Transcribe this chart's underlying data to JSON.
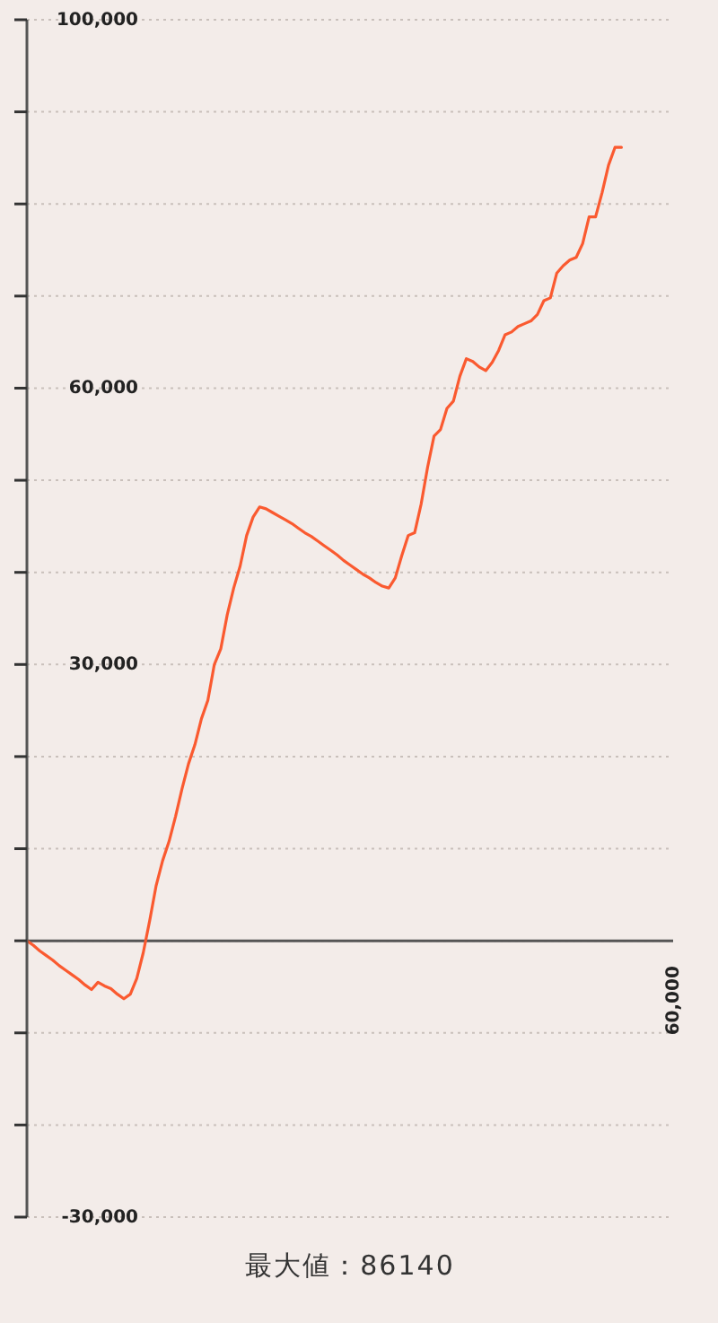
{
  "chart_data": {
    "type": "line",
    "color": "#fa5a30",
    "categories": [
      null,
      null,
      null,
      null,
      null,
      null,
      null,
      null,
      null,
      null,
      null,
      null,
      null,
      null,
      null,
      null,
      null,
      null,
      null,
      null,
      null,
      null,
      null,
      null,
      null,
      null,
      null,
      null,
      null,
      null,
      null,
      null,
      null,
      null,
      null,
      null,
      null,
      null,
      null,
      null,
      null,
      null,
      null,
      null,
      null,
      null,
      null,
      null,
      null,
      null,
      null,
      null,
      null,
      null,
      null,
      null,
      null,
      null,
      null,
      null,
      null,
      null,
      null,
      null,
      null,
      null,
      null,
      null,
      null,
      null,
      null,
      null,
      null,
      null,
      null,
      null,
      null,
      null,
      null,
      null,
      null,
      null,
      null,
      null,
      null,
      null,
      null,
      null,
      null,
      null,
      null,
      null,
      null,
      null,
      null,
      null,
      null,
      null,
      null,
      null,
      "60,000"
    ],
    "values": [
      0,
      -500,
      -1100,
      -1600,
      -2100,
      -2700,
      -3200,
      -3700,
      -4200,
      -4800,
      -5300,
      -4500,
      -4900,
      -5200,
      -5800,
      -6300,
      -5800,
      -4100,
      -1300,
      2200,
      6000,
      8700,
      10800,
      13500,
      16500,
      19200,
      21300,
      24100,
      26100,
      30000,
      31700,
      35400,
      38300,
      40700,
      44000,
      46000,
      47100,
      46900,
      46500,
      46100,
      45700,
      45300,
      44800,
      44300,
      43900,
      43400,
      42900,
      42400,
      41900,
      41300,
      40800,
      40300,
      39800,
      39400,
      38900,
      38500,
      38300,
      39400,
      41800,
      44000,
      44300,
      47400,
      51400,
      54800,
      55500,
      57800,
      58600,
      61300,
      63200,
      62900,
      62300,
      61900,
      62800,
      64100,
      65800,
      66100,
      66700,
      67000,
      67300,
      68000,
      69500,
      69800,
      72500,
      73300,
      73900,
      74200,
      75700,
      78600,
      78600,
      81200,
      84200,
      86140,
      86140,
      null,
      null,
      null,
      null,
      null,
      null,
      null,
      null
    ],
    "ylim": [
      -30000,
      100000
    ],
    "yticks": [
      {
        "value": -30000,
        "label": "-30,000"
      },
      {
        "value": -20000,
        "label": null
      },
      {
        "value": -10000,
        "label": null
      },
      {
        "value": 0,
        "label": null
      },
      {
        "value": 10000,
        "label": null
      },
      {
        "value": 20000,
        "label": null
      },
      {
        "value": 30000,
        "label": "30,000"
      },
      {
        "value": 40000,
        "label": null
      },
      {
        "value": 50000,
        "label": null
      },
      {
        "value": 60000,
        "label": "60,000"
      },
      {
        "value": 70000,
        "label": null
      },
      {
        "value": 80000,
        "label": null
      },
      {
        "value": 90000,
        "label": null
      },
      {
        "value": 100000,
        "label": "100,000"
      }
    ],
    "grid": "y",
    "annotations": [
      "最大値：86140"
    ]
  }
}
